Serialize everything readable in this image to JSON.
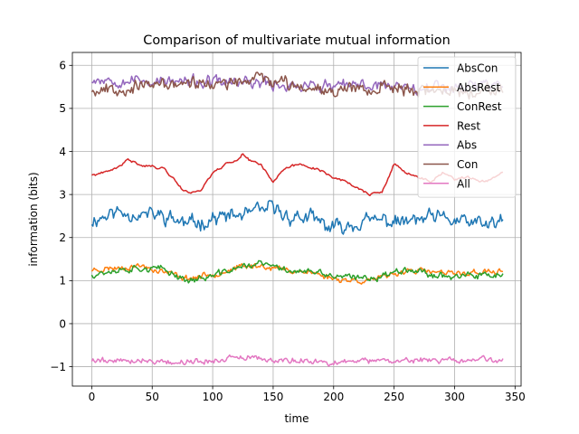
{
  "chart_data": {
    "type": "line",
    "title": "Comparison of multivariate mutual information",
    "xlabel": "time",
    "ylabel": "information (bits)",
    "xlim": [
      -16,
      355
    ],
    "ylim": [
      -1.45,
      6.3
    ],
    "xticks": [
      0,
      50,
      100,
      150,
      200,
      250,
      300,
      350
    ],
    "yticks": [
      -1,
      0,
      1,
      2,
      3,
      4,
      5,
      6
    ],
    "xtick_labels": [
      "0",
      "50",
      "100",
      "150",
      "200",
      "250",
      "300",
      "350"
    ],
    "ytick_labels": [
      "−1",
      "0",
      "1",
      "2",
      "3",
      "4",
      "5",
      "6"
    ],
    "grid": true,
    "legend_position": "top-right",
    "n_points": 341,
    "series": [
      {
        "name": "AbsCon",
        "color": "#1f77b4",
        "x": [
          0,
          20,
          40,
          60,
          80,
          100,
          120,
          140,
          150,
          160,
          180,
          200,
          220,
          240,
          260,
          280,
          300,
          320,
          340
        ],
        "y": [
          2.4,
          2.6,
          2.55,
          2.5,
          2.3,
          2.45,
          2.5,
          2.6,
          2.7,
          2.5,
          2.45,
          2.2,
          2.35,
          2.4,
          2.35,
          2.45,
          2.4,
          2.3,
          2.35
        ],
        "noise": 0.18,
        "seed": 11
      },
      {
        "name": "AbsRest",
        "color": "#ff7f0e",
        "x": [
          0,
          20,
          40,
          60,
          80,
          100,
          120,
          140,
          160,
          180,
          200,
          220,
          240,
          260,
          280,
          300,
          320,
          340
        ],
        "y": [
          1.25,
          1.3,
          1.35,
          1.2,
          1.05,
          1.15,
          1.3,
          1.35,
          1.25,
          1.2,
          1.05,
          1.0,
          1.05,
          1.25,
          1.2,
          1.15,
          1.2,
          1.2
        ],
        "noise": 0.07,
        "seed": 23
      },
      {
        "name": "ConRest",
        "color": "#2ca02c",
        "x": [
          0,
          20,
          40,
          60,
          80,
          100,
          120,
          140,
          160,
          180,
          200,
          220,
          240,
          260,
          280,
          300,
          320,
          340
        ],
        "y": [
          1.15,
          1.25,
          1.3,
          1.25,
          1.0,
          1.1,
          1.3,
          1.4,
          1.25,
          1.2,
          1.1,
          1.05,
          1.1,
          1.3,
          1.15,
          1.1,
          1.1,
          1.15
        ],
        "noise": 0.08,
        "seed": 37
      },
      {
        "name": "Rest",
        "color": "#d62728",
        "x": [
          0,
          10,
          20,
          30,
          40,
          50,
          60,
          70,
          75,
          80,
          90,
          100,
          110,
          120,
          125,
          130,
          140,
          150,
          160,
          170,
          180,
          190,
          200,
          210,
          220,
          230,
          240,
          250,
          260,
          270,
          280,
          290,
          300,
          310,
          320,
          330,
          340
        ],
        "y": [
          3.45,
          3.5,
          3.6,
          3.8,
          3.7,
          3.65,
          3.6,
          3.3,
          3.1,
          3.05,
          3.1,
          3.5,
          3.7,
          3.8,
          3.95,
          3.8,
          3.7,
          3.3,
          3.6,
          3.7,
          3.65,
          3.55,
          3.4,
          3.3,
          3.15,
          3.0,
          3.05,
          3.7,
          3.5,
          3.4,
          3.3,
          3.5,
          3.35,
          3.4,
          3.3,
          3.35,
          3.5
        ],
        "noise": 0.03,
        "seed": 41
      },
      {
        "name": "Abs",
        "color": "#9467bd",
        "x": [
          0,
          40,
          80,
          120,
          160,
          200,
          240,
          280,
          320,
          340
        ],
        "y": [
          5.7,
          5.65,
          5.6,
          5.6,
          5.55,
          5.5,
          5.55,
          5.5,
          5.55,
          5.6
        ],
        "noise": 0.14,
        "seed": 53
      },
      {
        "name": "Con",
        "color": "#8c564b",
        "x": [
          0,
          40,
          80,
          120,
          140,
          160,
          200,
          240,
          280,
          320,
          340
        ],
        "y": [
          5.45,
          5.5,
          5.6,
          5.55,
          5.75,
          5.55,
          5.45,
          5.5,
          5.4,
          5.4,
          5.45
        ],
        "noise": 0.15,
        "seed": 67
      },
      {
        "name": "All",
        "color": "#e377c2",
        "x": [
          0,
          40,
          80,
          120,
          160,
          200,
          240,
          280,
          320,
          340
        ],
        "y": [
          -0.85,
          -0.85,
          -0.9,
          -0.8,
          -0.85,
          -0.9,
          -0.85,
          -0.85,
          -0.85,
          -0.85
        ],
        "noise": 0.07,
        "seed": 79
      }
    ]
  }
}
